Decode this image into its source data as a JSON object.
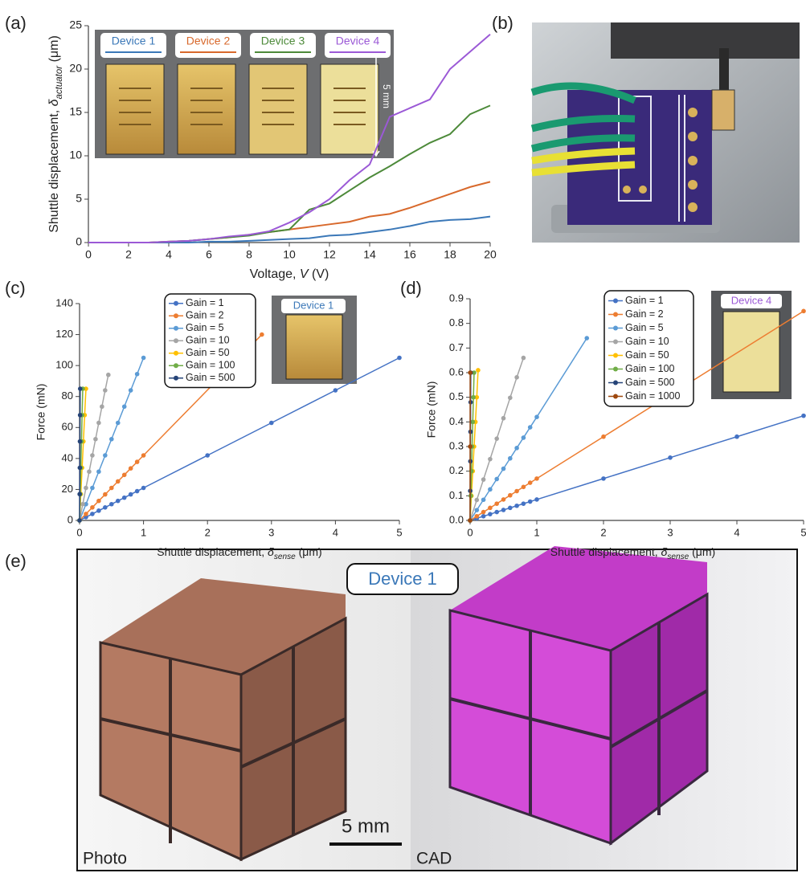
{
  "panel_labels": [
    "(a)",
    "(b)",
    "(c)",
    "(d)",
    "(e)"
  ],
  "photo_e": {
    "title": "Device 1",
    "left_label": "Photo",
    "scale_label": "5 mm",
    "right_label": "CAD"
  },
  "chart_data": [
    {
      "type": "line",
      "xlabel": [
        "Voltage, ",
        "V",
        " (V)"
      ],
      "ylabel": [
        "Shuttle displacement, ",
        "δ",
        "actuator",
        " (μm)"
      ],
      "xlim": [
        0,
        20
      ],
      "xticks": [
        0,
        2,
        4,
        6,
        8,
        10,
        12,
        14,
        16,
        18,
        20
      ],
      "ylim": [
        0,
        25
      ],
      "yticks": [
        0,
        5,
        10,
        15,
        20,
        25
      ],
      "scale_label": "5 mm",
      "x": [
        0,
        1,
        2,
        3,
        4,
        5,
        6,
        7,
        8,
        9,
        10,
        11,
        12,
        13,
        14,
        15,
        16,
        17,
        18,
        19,
        20
      ],
      "series": [
        {
          "name": "Device 1",
          "color": "#3b78b8",
          "values": [
            0,
            0,
            0,
            0,
            0,
            0,
            0.1,
            0.1,
            0.2,
            0.3,
            0.4,
            0.5,
            0.8,
            0.9,
            1.2,
            1.5,
            1.9,
            2.4,
            2.6,
            2.7,
            3.0
          ]
        },
        {
          "name": "Device 2",
          "color": "#d8692c",
          "values": [
            0,
            0,
            0,
            0,
            0.1,
            0.2,
            0.4,
            0.6,
            0.9,
            1.2,
            1.5,
            1.8,
            2.1,
            2.4,
            3.0,
            3.3,
            4.0,
            4.8,
            5.6,
            6.4,
            7.0
          ]
        },
        {
          "name": "Device 3",
          "color": "#4d8a3a",
          "values": [
            0,
            0,
            0,
            0,
            0.1,
            0.2,
            0.4,
            0.6,
            0.8,
            1.2,
            1.5,
            3.8,
            4.5,
            6.0,
            7.5,
            8.8,
            10.2,
            11.5,
            12.5,
            14.8,
            15.8
          ]
        },
        {
          "name": "Device 4",
          "color": "#9b59d6",
          "values": [
            0,
            0,
            0,
            0,
            0.1,
            0.2,
            0.4,
            0.7,
            0.9,
            1.3,
            2.3,
            3.5,
            5.0,
            7.2,
            9.0,
            14.5,
            15.5,
            16.5,
            20.0,
            22.0,
            24.0
          ]
        }
      ]
    },
    {
      "type": "line",
      "markers": true,
      "xlabel": [
        "Shuttle displacement, ",
        "δ",
        "sense",
        " (μm)"
      ],
      "ylabel": "Force (mN)",
      "xlim": [
        0,
        5
      ],
      "xticks": [
        0,
        1,
        2,
        3,
        4,
        5
      ],
      "ylim": [
        0,
        140
      ],
      "yticks": [
        0,
        20,
        40,
        60,
        80,
        100,
        120,
        140
      ],
      "inset_label": "Device 1",
      "series": [
        {
          "name": "Gain = 1",
          "color": "#4472c4",
          "x": [
            0,
            0.1,
            0.2,
            0.3,
            0.4,
            0.5,
            0.6,
            0.7,
            0.8,
            0.9,
            1,
            2,
            3,
            4,
            5
          ],
          "values": [
            0,
            2.1,
            4.2,
            6.3,
            8.4,
            10.5,
            12.6,
            14.7,
            16.8,
            18.9,
            21,
            42,
            63,
            84,
            105
          ]
        },
        {
          "name": "Gain = 2",
          "color": "#ed7d31",
          "x": [
            0,
            0.1,
            0.2,
            0.3,
            0.4,
            0.5,
            0.6,
            0.7,
            0.8,
            0.9,
            1,
            2.85
          ],
          "values": [
            0,
            4.2,
            8.4,
            12.6,
            16.8,
            21,
            25.2,
            29.4,
            33.6,
            37.8,
            42,
            120
          ]
        },
        {
          "name": "Gain = 5",
          "color": "#5b9bd5",
          "x": [
            0,
            0.1,
            0.2,
            0.3,
            0.4,
            0.5,
            0.6,
            0.7,
            0.8,
            0.9,
            1
          ],
          "values": [
            0,
            10.5,
            21,
            31.5,
            42,
            52.5,
            63,
            73.5,
            84,
            94.5,
            105
          ]
        },
        {
          "name": "Gain = 10",
          "color": "#a5a5a5",
          "x": [
            0,
            0.05,
            0.1,
            0.15,
            0.2,
            0.25,
            0.3,
            0.35,
            0.4,
            0.45
          ],
          "values": [
            0,
            10.5,
            21,
            31.5,
            42,
            52.5,
            63,
            73.5,
            84,
            94
          ]
        },
        {
          "name": "Gain = 50",
          "color": "#ffc000",
          "x": [
            0,
            0.02,
            0.04,
            0.06,
            0.08,
            0.1
          ],
          "values": [
            0,
            17,
            34,
            51,
            68,
            85
          ]
        },
        {
          "name": "Gain = 100",
          "color": "#70ad47",
          "x": [
            0,
            0.01,
            0.02,
            0.03,
            0.04,
            0.05
          ],
          "values": [
            0,
            17,
            34,
            51,
            68,
            85
          ]
        },
        {
          "name": "Gain = 500",
          "color": "#264478",
          "x": [
            0,
            0.002,
            0.004,
            0.006,
            0.008,
            0.01
          ],
          "values": [
            0,
            17,
            34,
            51,
            68,
            85
          ]
        }
      ]
    },
    {
      "type": "line",
      "markers": true,
      "xlabel": [
        "Shuttle displacement, ",
        "δ",
        "sense",
        " (μm)"
      ],
      "ylabel": "Force (mN)",
      "xlim": [
        0,
        5
      ],
      "xticks": [
        0,
        1,
        2,
        3,
        4,
        5
      ],
      "ylim": [
        0,
        0.9
      ],
      "yticks": [
        {
          "value": 0,
          "label": "0.0"
        },
        0.1,
        0.2,
        0.3,
        0.4,
        0.5,
        0.6,
        0.7,
        0.8,
        0.9
      ],
      "inset_label": "Device 4",
      "series": [
        {
          "name": "Gain = 1",
          "color": "#4472c4",
          "x": [
            0,
            0.1,
            0.2,
            0.3,
            0.4,
            0.5,
            0.6,
            0.7,
            0.8,
            0.9,
            1,
            2,
            3,
            4,
            5
          ],
          "values": [
            0,
            0.0085,
            0.017,
            0.0255,
            0.034,
            0.0425,
            0.051,
            0.0595,
            0.068,
            0.0765,
            0.085,
            0.17,
            0.255,
            0.34,
            0.425
          ]
        },
        {
          "name": "Gain = 2",
          "color": "#ed7d31",
          "x": [
            0,
            0.1,
            0.2,
            0.3,
            0.4,
            0.5,
            0.6,
            0.7,
            0.8,
            0.9,
            1,
            2,
            5
          ],
          "values": [
            0,
            0.017,
            0.034,
            0.051,
            0.068,
            0.085,
            0.102,
            0.119,
            0.136,
            0.153,
            0.17,
            0.34,
            0.85
          ]
        },
        {
          "name": "Gain = 5",
          "color": "#5b9bd5",
          "x": [
            0,
            0.1,
            0.2,
            0.3,
            0.4,
            0.5,
            0.6,
            0.7,
            0.8,
            0.9,
            1,
            1.75
          ],
          "values": [
            0,
            0.042,
            0.084,
            0.126,
            0.168,
            0.21,
            0.252,
            0.294,
            0.336,
            0.378,
            0.42,
            0.74
          ]
        },
        {
          "name": "Gain = 10",
          "color": "#a5a5a5",
          "x": [
            0,
            0.1,
            0.2,
            0.3,
            0.4,
            0.5,
            0.6,
            0.7,
            0.8
          ],
          "values": [
            0,
            0.083,
            0.166,
            0.249,
            0.332,
            0.415,
            0.498,
            0.581,
            0.66
          ]
        },
        {
          "name": "Gain = 50",
          "color": "#ffc000",
          "x": [
            0,
            0.02,
            0.04,
            0.06,
            0.08,
            0.1,
            0.12
          ],
          "values": [
            0,
            0.1,
            0.2,
            0.3,
            0.4,
            0.5,
            0.61
          ]
        },
        {
          "name": "Gain = 100",
          "color": "#70ad47",
          "x": [
            0,
            0.01,
            0.02,
            0.03,
            0.04,
            0.05,
            0.06
          ],
          "values": [
            0,
            0.1,
            0.2,
            0.3,
            0.4,
            0.5,
            0.6
          ]
        },
        {
          "name": "Gain = 500",
          "color": "#264478",
          "x": [
            0,
            0.002,
            0.004,
            0.006,
            0.008,
            0.01
          ],
          "values": [
            0,
            0.12,
            0.24,
            0.36,
            0.48,
            0.6
          ]
        },
        {
          "name": "Gain = 1000",
          "color": "#9e480e",
          "x": [
            0,
            0.001,
            0.002
          ],
          "values": [
            0,
            0.3,
            0.6
          ]
        }
      ]
    }
  ]
}
